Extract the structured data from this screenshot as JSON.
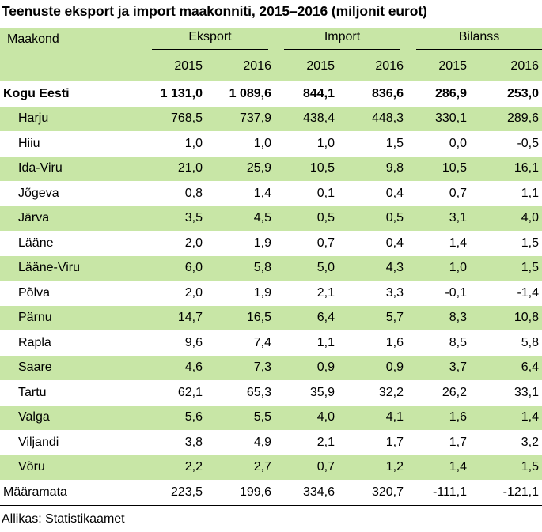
{
  "title": "Teenuste eksport ja import maakonniti, 2015–2016 (miljonit eurot)",
  "header": {
    "region_label": "Maakond",
    "groups": [
      "Eksport",
      "Import",
      "Bilanss"
    ],
    "years": [
      "2015",
      "2016",
      "2015",
      "2016",
      "2015",
      "2016"
    ]
  },
  "rows": [
    {
      "name": "Kogu Eesti",
      "values": [
        "1 131,0",
        "1 089,6",
        "844,1",
        "836,6",
        "286,9",
        "253,0"
      ]
    },
    {
      "name": "Harju",
      "values": [
        "768,5",
        "737,9",
        "438,4",
        "448,3",
        "330,1",
        "289,6"
      ]
    },
    {
      "name": "Hiiu",
      "values": [
        "1,0",
        "1,0",
        "1,0",
        "1,5",
        "0,0",
        "-0,5"
      ]
    },
    {
      "name": "Ida-Viru",
      "values": [
        "21,0",
        "25,9",
        "10,5",
        "9,8",
        "10,5",
        "16,1"
      ]
    },
    {
      "name": "Jõgeva",
      "values": [
        "0,8",
        "1,4",
        "0,1",
        "0,4",
        "0,7",
        "1,1"
      ]
    },
    {
      "name": "Järva",
      "values": [
        "3,5",
        "4,5",
        "0,5",
        "0,5",
        "3,1",
        "4,0"
      ]
    },
    {
      "name": "Lääne",
      "values": [
        "2,0",
        "1,9",
        "0,7",
        "0,4",
        "1,4",
        "1,5"
      ]
    },
    {
      "name": "Lääne-Viru",
      "values": [
        "6,0",
        "5,8",
        "5,0",
        "4,3",
        "1,0",
        "1,5"
      ]
    },
    {
      "name": "Põlva",
      "values": [
        "2,0",
        "1,9",
        "2,1",
        "3,3",
        "-0,1",
        "-1,4"
      ]
    },
    {
      "name": "Pärnu",
      "values": [
        "14,7",
        "16,5",
        "6,4",
        "5,7",
        "8,3",
        "10,8"
      ]
    },
    {
      "name": "Rapla",
      "values": [
        "9,6",
        "7,4",
        "1,1",
        "1,6",
        "8,5",
        "5,8"
      ]
    },
    {
      "name": "Saare",
      "values": [
        "4,6",
        "7,3",
        "0,9",
        "0,9",
        "3,7",
        "6,4"
      ]
    },
    {
      "name": "Tartu",
      "values": [
        "62,1",
        "65,3",
        "35,9",
        "32,2",
        "26,2",
        "33,1"
      ]
    },
    {
      "name": "Valga",
      "values": [
        "5,6",
        "5,5",
        "4,0",
        "4,1",
        "1,6",
        "1,4"
      ]
    },
    {
      "name": "Viljandi",
      "values": [
        "3,8",
        "4,9",
        "2,1",
        "1,7",
        "1,7",
        "3,2"
      ]
    },
    {
      "name": "Võru",
      "values": [
        "2,2",
        "2,7",
        "0,7",
        "1,2",
        "1,4",
        "1,5"
      ]
    },
    {
      "name": "Määramata",
      "values": [
        "223,5",
        "199,6",
        "334,6",
        "320,7",
        "-111,1",
        "-121,1"
      ]
    }
  ],
  "source": "Allikas: Statistikaamet",
  "colors": {
    "band": "#c8e6a6",
    "text": "#000000"
  }
}
